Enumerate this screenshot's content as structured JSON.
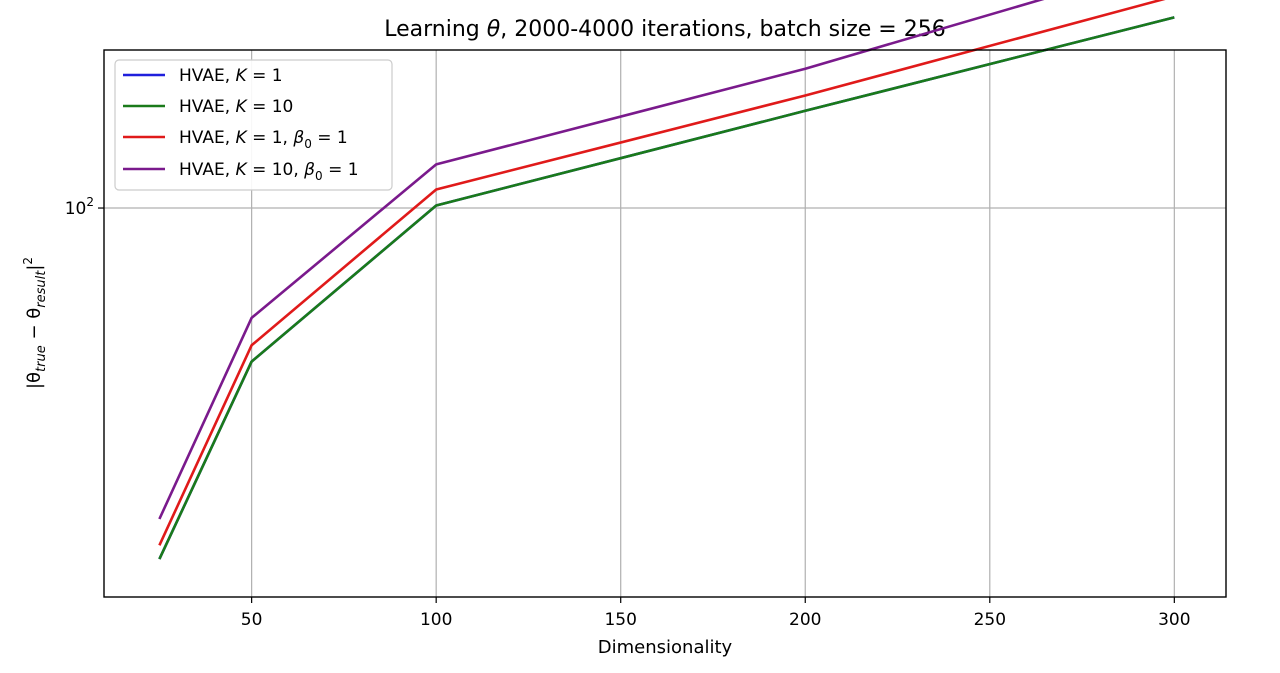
{
  "chart_data": {
    "type": "line",
    "title_parts": [
      "Learning ",
      "θ",
      ", 2000-4000 iterations, batch size = 256"
    ],
    "xlabel": "Dimensionality",
    "ylabel_parts": [
      "|θ",
      "true",
      " − θ",
      "result",
      "|",
      "2"
    ],
    "x": [
      25,
      50,
      100,
      200,
      300
    ],
    "xlim": [
      10,
      314
    ],
    "ylim": [
      22,
      185
    ],
    "yscale": "log",
    "xticks": [
      50,
      100,
      150,
      200,
      250,
      300
    ],
    "xtick_labels": [
      "50",
      "100",
      "150",
      "200",
      "250",
      "300"
    ],
    "ytick_labels": [
      {
        "value": 100,
        "base": "10",
        "exp": "2"
      }
    ],
    "grid": true,
    "legend_location": "upper-left",
    "series": [
      {
        "key": "k1",
        "name_parts": [
          "HVAE, ",
          "K",
          " = 1"
        ],
        "color": "#1f1fdc",
        "values": [
          25.5,
          55,
          101,
          146,
          210
        ]
      },
      {
        "key": "k10",
        "name_parts": [
          "HVAE, ",
          "K",
          " = 10"
        ],
        "color": "#1a7a1a",
        "values": [
          25.5,
          55,
          101,
          146,
          210
        ]
      },
      {
        "key": "k1b",
        "name_parts": [
          "HVAE, ",
          "K",
          " = 1, ",
          "β",
          "0",
          " = 1"
        ],
        "color": "#e01a1a",
        "values": [
          26.9,
          58.6,
          107.5,
          155,
          228
        ]
      },
      {
        "key": "k10b",
        "name_parts": [
          "HVAE, ",
          "K",
          " = 10, ",
          "β",
          "0",
          " = 1"
        ],
        "color": "#7a1a8c",
        "values": [
          29.8,
          65.2,
          118.5,
          172,
          262
        ]
      }
    ]
  }
}
